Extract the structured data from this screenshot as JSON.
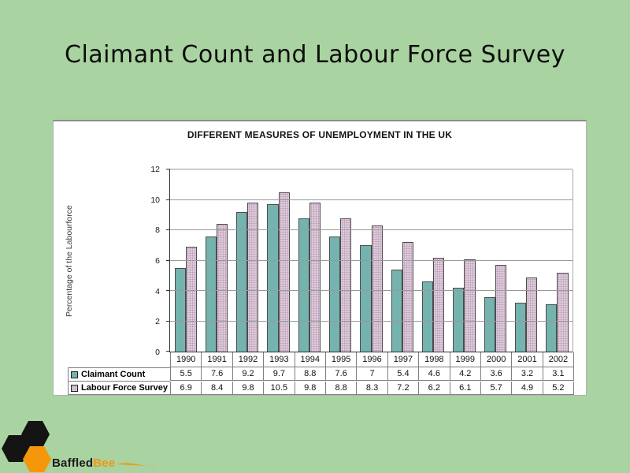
{
  "slide": {
    "title": "Claimant Count and Labour Force Survey",
    "background_color": "#A9D3A0"
  },
  "chart": {
    "title": "DIFFERENT MEASURES OF UNEMPLOYMENT IN THE UK",
    "y_axis_label": "Percentage of the Labourforce"
  },
  "chart_data": {
    "type": "bar",
    "title": "DIFFERENT MEASURES OF UNEMPLOYMENT IN THE UK",
    "categories": [
      "1990",
      "1991",
      "1992",
      "1993",
      "1994",
      "1995",
      "1996",
      "1997",
      "1998",
      "1999",
      "2000",
      "2001",
      "2002"
    ],
    "series": [
      {
        "name": "Claimant Count",
        "color": "#74B3AE",
        "values": [
          5.5,
          7.6,
          9.2,
          9.7,
          8.8,
          7.6,
          7,
          5.4,
          4.6,
          4.2,
          3.6,
          3.2,
          3.1
        ]
      },
      {
        "name": "Labour Force Survey",
        "color": "#DECBDB",
        "values": [
          6.9,
          8.4,
          9.8,
          10.5,
          9.8,
          8.8,
          8.3,
          7.2,
          6.2,
          6.1,
          5.7,
          4.9,
          5.2
        ]
      }
    ],
    "xlabel": "",
    "ylabel": "Percentage of the Labourforce",
    "ylim": [
      0,
      12
    ],
    "yticks": [
      0,
      2,
      4,
      6,
      8,
      10,
      12
    ],
    "grid": true,
    "legend_position": "table-left",
    "data_table_shown": true
  },
  "logo": {
    "text_primary": "Baffled",
    "text_secondary": "Bee",
    "orange": "#F4970B",
    "black": "#141414"
  }
}
